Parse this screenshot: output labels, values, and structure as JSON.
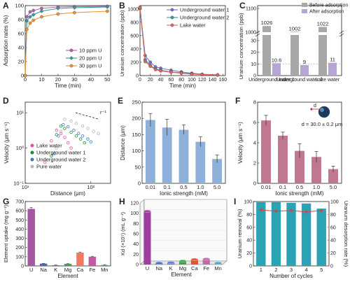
{
  "chart_data": [
    {
      "panel": "A",
      "type": "line",
      "xlabel": "Time (min)",
      "ylabel": "Adsorption rates (%)",
      "xlim": [
        0,
        52
      ],
      "ylim": [
        0,
        100
      ],
      "xticks": [
        0,
        10,
        20,
        30,
        40,
        50
      ],
      "yticks": [
        0,
        20,
        40,
        60,
        80,
        100
      ],
      "legend_position": "bottom-right",
      "series": [
        {
          "name": "10 ppm U",
          "color": "#b561b0",
          "marker": "circle",
          "x": [
            0,
            1,
            3,
            5,
            10,
            20,
            30,
            50
          ],
          "y": [
            0,
            84,
            91,
            93,
            96,
            98,
            98.5,
            99
          ]
        },
        {
          "name": "20 ppm U",
          "color": "#2f9a96",
          "marker": "diamond",
          "x": [
            0,
            1,
            3,
            5,
            10,
            20,
            30,
            50
          ],
          "y": [
            0,
            78,
            84,
            87,
            92,
            96,
            97,
            98
          ]
        },
        {
          "name": "30 ppm U",
          "color": "#e99434",
          "marker": "circle",
          "x": [
            0,
            1,
            3,
            5,
            10,
            20,
            30,
            50
          ],
          "y": [
            0,
            66,
            75,
            79,
            84,
            88,
            90,
            92
          ]
        }
      ]
    },
    {
      "panel": "B",
      "type": "line",
      "xlabel": "Time (min)",
      "ylabel": "Uranium concentration (ppb)",
      "xlim": [
        0,
        165
      ],
      "ylim": [
        0,
        1050
      ],
      "xticks": [
        0,
        20,
        40,
        60,
        80,
        100,
        120,
        140,
        160
      ],
      "yticks": [
        0,
        200,
        400,
        600,
        800,
        1000
      ],
      "legend_position": "top-right",
      "series": [
        {
          "name": "Underground water 1",
          "color": "#7e6bc4",
          "x": [
            0,
            10,
            20,
            30,
            40,
            60,
            80,
            100,
            120,
            150
          ],
          "y": [
            1026,
            300,
            200,
            130,
            110,
            80,
            55,
            35,
            20,
            10
          ]
        },
        {
          "name": "Underground water 2",
          "color": "#2f9a96",
          "x": [
            0,
            10,
            20,
            30,
            40,
            60,
            80,
            100,
            120,
            150
          ],
          "y": [
            1002,
            240,
            150,
            100,
            80,
            55,
            40,
            25,
            15,
            9
          ]
        },
        {
          "name": "Lake water",
          "color": "#e0655c",
          "x": [
            0,
            10,
            20,
            30,
            40,
            60,
            80,
            100,
            120,
            150
          ],
          "y": [
            1022,
            210,
            140,
            90,
            70,
            50,
            35,
            22,
            15,
            11
          ]
        }
      ]
    },
    {
      "panel": "C",
      "type": "bar",
      "ylabel": "Uranium concentration (ppb)",
      "yticks": [
        0,
        10,
        20,
        30,
        1000,
        1100
      ],
      "axis_break": true,
      "legend_position": "top",
      "categories": [
        "Underground water 1",
        "Underground water 2",
        "Lake water"
      ],
      "series": [
        {
          "name": "Before adsorption",
          "color": "#a8a8a8",
          "values": [
            1026,
            1002,
            1022
          ]
        },
        {
          "name": "After adsorption",
          "color": "#b7a5d6",
          "values": [
            10.6,
            9,
            11
          ]
        }
      ],
      "data_labels": {
        "before": [
          "1026",
          "1002",
          "1022"
        ],
        "after": [
          "10.6",
          "9",
          "11"
        ]
      }
    },
    {
      "panel": "D",
      "type": "scatter",
      "xlabel": "Distance (μm)",
      "ylabel": "Velocity (μm s⁻¹)",
      "xscale": "log",
      "yscale": "log",
      "xlim": [
        10,
        200
      ],
      "ylim": [
        0.1,
        20
      ],
      "xticks": [
        10,
        100
      ],
      "yticks": [
        0.1,
        1,
        10
      ],
      "annotation": "r⁻¹",
      "legend_position": "bottom-left",
      "series": [
        {
          "name": "Lake water",
          "color": "#e24fa0",
          "x": [
            20,
            25,
            30,
            35,
            40,
            45,
            50
          ],
          "y": [
            0.4,
            1.6,
            3.2,
            2.6,
            2.0,
            1.4,
            1.0
          ]
        },
        {
          "name": "Underground water 1",
          "color": "#1f8a3a",
          "x": [
            25,
            30,
            35,
            40,
            50,
            60,
            70,
            80
          ],
          "y": [
            0.6,
            2.4,
            4.2,
            3.6,
            2.8,
            2.2,
            1.8,
            1.4
          ]
        },
        {
          "name": "Underground water 2",
          "color": "#3a7ac4",
          "x": [
            28,
            32,
            38,
            45,
            55,
            65,
            75,
            90,
            100
          ],
          "y": [
            0.7,
            2.2,
            4.6,
            4.0,
            3.2,
            2.6,
            2.2,
            1.8,
            1.5
          ]
        },
        {
          "name": "Pure water",
          "color": "#b5b5b5",
          "x": [
            30,
            35,
            40,
            50,
            60,
            75,
            90,
            110,
            130
          ],
          "y": [
            1.0,
            3.0,
            6.5,
            5.8,
            5.0,
            4.2,
            3.6,
            3.0,
            2.6
          ]
        }
      ]
    },
    {
      "panel": "E",
      "type": "bar",
      "xlabel": "Ionic strength (mM)",
      "ylabel": "Distance (μm)",
      "ylim": [
        0,
        250
      ],
      "yticks": [
        0,
        50,
        100,
        150,
        200,
        250
      ],
      "color": "#8fb0d8",
      "categories": [
        "0.01",
        "0.1",
        "0.5",
        "1.0",
        "5.0"
      ],
      "values": [
        195,
        172,
        165,
        128,
        75
      ],
      "errors": [
        20,
        25,
        15,
        15,
        12
      ]
    },
    {
      "panel": "F",
      "type": "bar",
      "xlabel": "Ionic strength (mM)",
      "ylabel": "Velocity (μm s⁻¹)",
      "ylim": [
        0,
        8
      ],
      "yticks": [
        0,
        2,
        4,
        6,
        8
      ],
      "color": "#c07890",
      "annotation": "d = 30.0 ± 0.2 μm",
      "categories": [
        "0.01",
        "0.1",
        "0.5",
        "1.0",
        "5.0"
      ],
      "values": [
        6.2,
        4.7,
        3.2,
        2.6,
        1.4
      ],
      "errors": [
        0.5,
        0.35,
        0.7,
        0.55,
        0.3
      ]
    },
    {
      "panel": "G",
      "type": "bar",
      "xlabel": "Element",
      "ylabel": "Element uptake (mg g⁻¹)",
      "ylim": [
        0,
        700
      ],
      "yticks": [
        0,
        100,
        200,
        300,
        400,
        500,
        600,
        700
      ],
      "categories": [
        "U",
        "Na",
        "K",
        "Mg",
        "Ca",
        "Fe",
        "Mn"
      ],
      "values": [
        620,
        25,
        8,
        22,
        145,
        100,
        10
      ],
      "errors": [
        15,
        3,
        2,
        3,
        6,
        5,
        2
      ],
      "colors": [
        "#a557a0",
        "#3a6cc9",
        "#5a7bd6",
        "#3ea24a",
        "#f07a62",
        "#c45aa4",
        "#3aa7c9"
      ]
    },
    {
      "panel": "H",
      "type": "bar",
      "xlabel": "Element",
      "ylabel": "Kd (×10⁵) (mL g⁻¹)",
      "ylim": [
        0,
        120
      ],
      "yticks": [
        0,
        20,
        40,
        60,
        80,
        100,
        120
      ],
      "categories": [
        "U",
        "Na",
        "K",
        "Mg",
        "Ca",
        "Fe",
        "Mn"
      ],
      "values": [
        104,
        3,
        4,
        7,
        10,
        11,
        3
      ],
      "colors": [
        "#a03ea0",
        "#3a6cc9",
        "#5a7bd6",
        "#3ea24a",
        "#e8502e",
        "#c06aa8",
        "#3aa7c9"
      ]
    },
    {
      "panel": "I",
      "type": "bar",
      "xlabel": "Number of cycles",
      "ylabel": "Uranium removal (%)",
      "ylabel_right": "Uranium desorption rate (%)",
      "ylim": [
        0,
        100
      ],
      "yticks": [
        0,
        20,
        40,
        60,
        80,
        100
      ],
      "categories": [
        "1",
        "2",
        "3",
        "4",
        "5"
      ],
      "values": [
        99,
        99,
        98,
        97,
        89
      ],
      "bar_color": "#2aa3b5",
      "line_color": "#d8434a",
      "desorption": [
        87,
        85,
        86,
        84,
        86
      ]
    }
  ]
}
